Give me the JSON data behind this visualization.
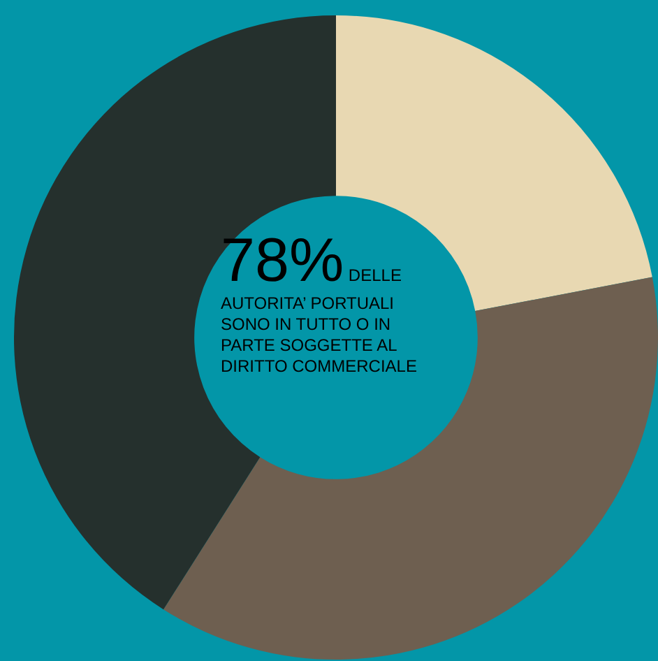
{
  "chart_data": {
    "type": "donut",
    "categories": [
      null,
      null,
      null
    ],
    "values": [
      22,
      37,
      41
    ],
    "colors": [
      "#e8d8b2",
      "#6e5f50",
      "#25302d"
    ],
    "legend": false,
    "annotations": [
      "78%",
      "DELLE AUTORITA’ PORTUALI SONO IN TUTTO O IN PARTE SOGGETTE AL DIRITTO COMMERCIALE"
    ]
  }
}
